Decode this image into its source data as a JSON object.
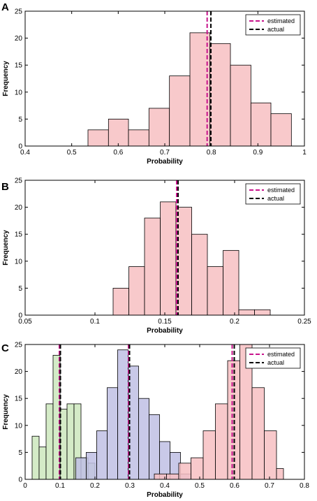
{
  "chart_data": [
    {
      "panel_label": "A",
      "type": "bar",
      "xlabel": "Probability",
      "ylabel": "Frequency",
      "xlim": [
        0.4,
        1
      ],
      "ylim": [
        0,
        25
      ],
      "xticks": [
        "0.4",
        "0.5",
        "0.6",
        "0.7",
        "0.8",
        "0.9",
        "1"
      ],
      "yticks": [
        "0",
        "5",
        "10",
        "15",
        "20",
        "25"
      ],
      "legend_position": "top-right",
      "legend": [
        {
          "label": "estimated",
          "color": "#c8148c",
          "style": "dashed"
        },
        {
          "label": "actual",
          "color": "#000000",
          "style": "dashed"
        }
      ],
      "series": [
        {
          "color": "#f7bfc2",
          "bin_edges": [
            0.535,
            0.579,
            0.622,
            0.666,
            0.71,
            0.754,
            0.797,
            0.841,
            0.885,
            0.928,
            0.972
          ],
          "counts": [
            3,
            5,
            3,
            7,
            13,
            21,
            19,
            15,
            8,
            6
          ],
          "estimated": 0.791,
          "actual": 0.799
        }
      ]
    },
    {
      "panel_label": "B",
      "type": "bar",
      "xlabel": "Probability",
      "ylabel": "Frequency",
      "xlim": [
        0.05,
        0.25
      ],
      "ylim": [
        0,
        25
      ],
      "xticks": [
        "0.05",
        "0.1",
        "0.15",
        "0.2",
        "0.25"
      ],
      "yticks": [
        "0",
        "5",
        "10",
        "15",
        "20",
        "25"
      ],
      "legend_position": "top-right",
      "legend": [
        {
          "label": "estimated",
          "color": "#c8148c",
          "style": "dashed"
        },
        {
          "label": "actual",
          "color": "#000000",
          "style": "dashed"
        }
      ],
      "series": [
        {
          "color": "#f7bfc2",
          "bin_edges": [
            0.113,
            0.1243,
            0.1355,
            0.1468,
            0.158,
            0.1693,
            0.1805,
            0.1918,
            0.203,
            0.2143,
            0.2255
          ],
          "counts": [
            5,
            9,
            18,
            21,
            20,
            15,
            9,
            12,
            1,
            1
          ],
          "estimated": 0.1585,
          "actual": 0.1595
        }
      ]
    },
    {
      "panel_label": "C",
      "type": "bar",
      "xlabel": "Probability",
      "ylabel": "Frequency",
      "xlim": [
        0,
        0.8
      ],
      "ylim": [
        0,
        25
      ],
      "xticks": [
        "0",
        "0.1",
        "0.2",
        "0.3",
        "0.4",
        "0.5",
        "0.6",
        "0.7",
        "0.8"
      ],
      "yticks": [
        "0",
        "5",
        "10",
        "15",
        "20",
        "25"
      ],
      "legend_position": "top-right",
      "legend": [
        {
          "label": "estimated",
          "color": "#c8148c",
          "style": "dashed"
        },
        {
          "label": "actual",
          "color": "#000000",
          "style": "dashed"
        }
      ],
      "series": [
        {
          "color": "#cde8bd",
          "bin_edges": [
            0.02,
            0.04,
            0.06,
            0.08,
            0.1,
            0.12,
            0.14,
            0.16,
            0.18,
            0.2
          ],
          "counts": [
            8,
            6,
            14,
            23,
            13,
            14,
            14,
            4,
            3
          ],
          "estimated": 0.098,
          "actual": 0.101
        },
        {
          "color": "#c0c0e4",
          "bin_edges": [
            0.145,
            0.175,
            0.205,
            0.235,
            0.265,
            0.295,
            0.325,
            0.355,
            0.385,
            0.415,
            0.445,
            0.475
          ],
          "counts": [
            4,
            5,
            9,
            17,
            24,
            21,
            15,
            12,
            7,
            5,
            1
          ],
          "estimated": 0.296,
          "actual": 0.299
        },
        {
          "color": "#f7bfc2",
          "bin_edges": [
            0.37,
            0.405,
            0.44,
            0.475,
            0.51,
            0.545,
            0.58,
            0.615,
            0.65,
            0.685,
            0.72,
            0.74
          ],
          "counts": [
            1,
            1,
            3,
            4,
            9,
            14,
            22,
            25,
            17,
            9,
            2
          ],
          "estimated": 0.593,
          "actual": 0.599
        }
      ]
    }
  ]
}
